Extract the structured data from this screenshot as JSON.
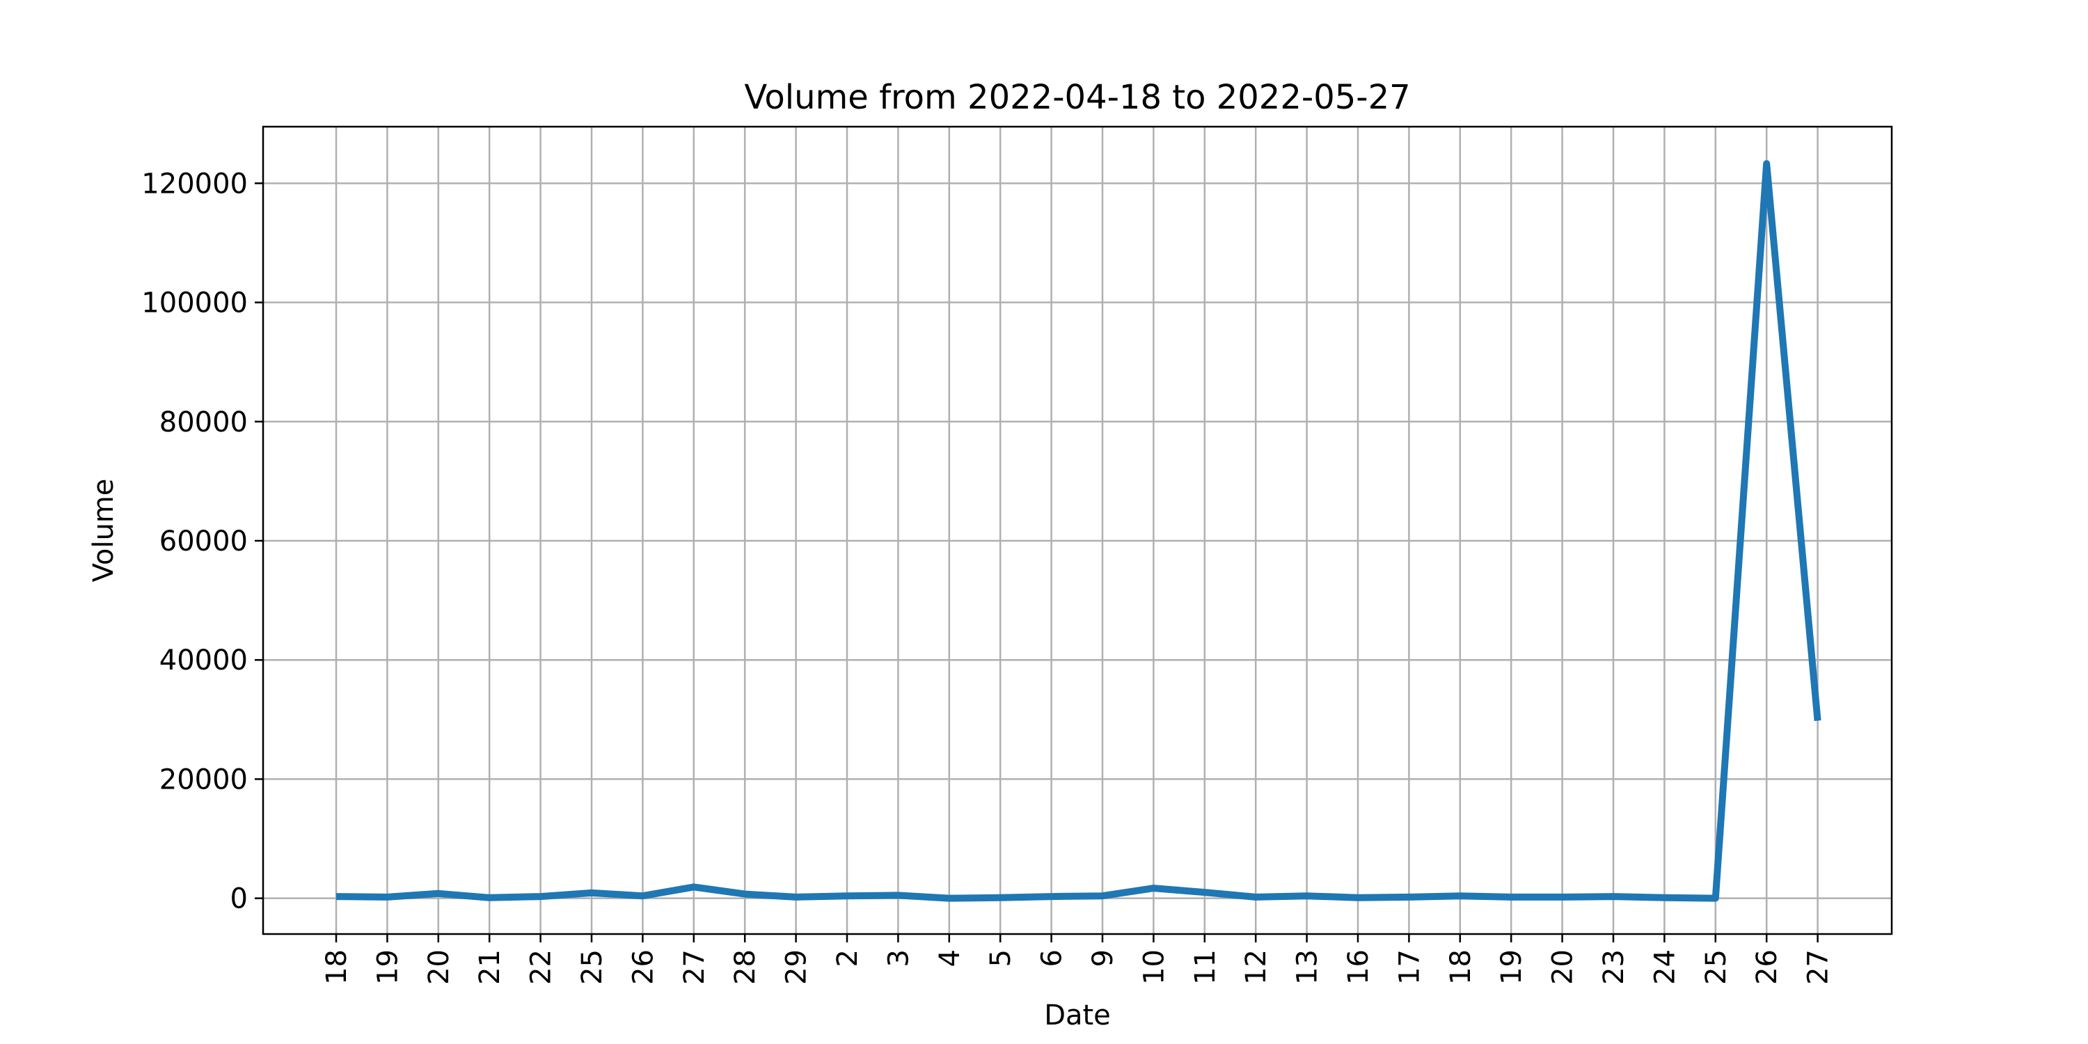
{
  "chart_data": {
    "type": "line",
    "title": "Volume from 2022-04-18 to 2022-05-27",
    "xlabel": "Date",
    "ylabel": "Volume",
    "x": [
      "2022-04-18",
      "2022-04-19",
      "2022-04-20",
      "2022-04-21",
      "2022-04-22",
      "2022-04-25",
      "2022-04-26",
      "2022-04-27",
      "2022-04-28",
      "2022-04-29",
      "2022-05-02",
      "2022-05-03",
      "2022-05-04",
      "2022-05-05",
      "2022-05-06",
      "2022-05-09",
      "2022-05-10",
      "2022-05-11",
      "2022-05-12",
      "2022-05-13",
      "2022-05-16",
      "2022-05-17",
      "2022-05-18",
      "2022-05-19",
      "2022-05-20",
      "2022-05-23",
      "2022-05-24",
      "2022-05-25",
      "2022-05-26",
      "2022-05-27"
    ],
    "tick_labels": [
      "18",
      "19",
      "20",
      "21",
      "22",
      "25",
      "26",
      "27",
      "28",
      "29",
      "2",
      "3",
      "4",
      "5",
      "6",
      "9",
      "10",
      "11",
      "12",
      "13",
      "16",
      "17",
      "18",
      "19",
      "20",
      "23",
      "24",
      "25",
      "26",
      "27"
    ],
    "series": [
      {
        "color": "#1f77b4",
        "values": [
          300,
          200,
          800,
          100,
          300,
          900,
          400,
          1900,
          700,
          200,
          400,
          500,
          0,
          100,
          300,
          400,
          1700,
          1000,
          200,
          400,
          100,
          200,
          400,
          200,
          200,
          300,
          100,
          0,
          123300,
          29800
        ]
      }
    ],
    "yticks": [
      0,
      20000,
      40000,
      60000,
      80000,
      100000,
      120000
    ],
    "ylim": [
      -6000,
      129500
    ],
    "grid": true,
    "legend": "none"
  }
}
